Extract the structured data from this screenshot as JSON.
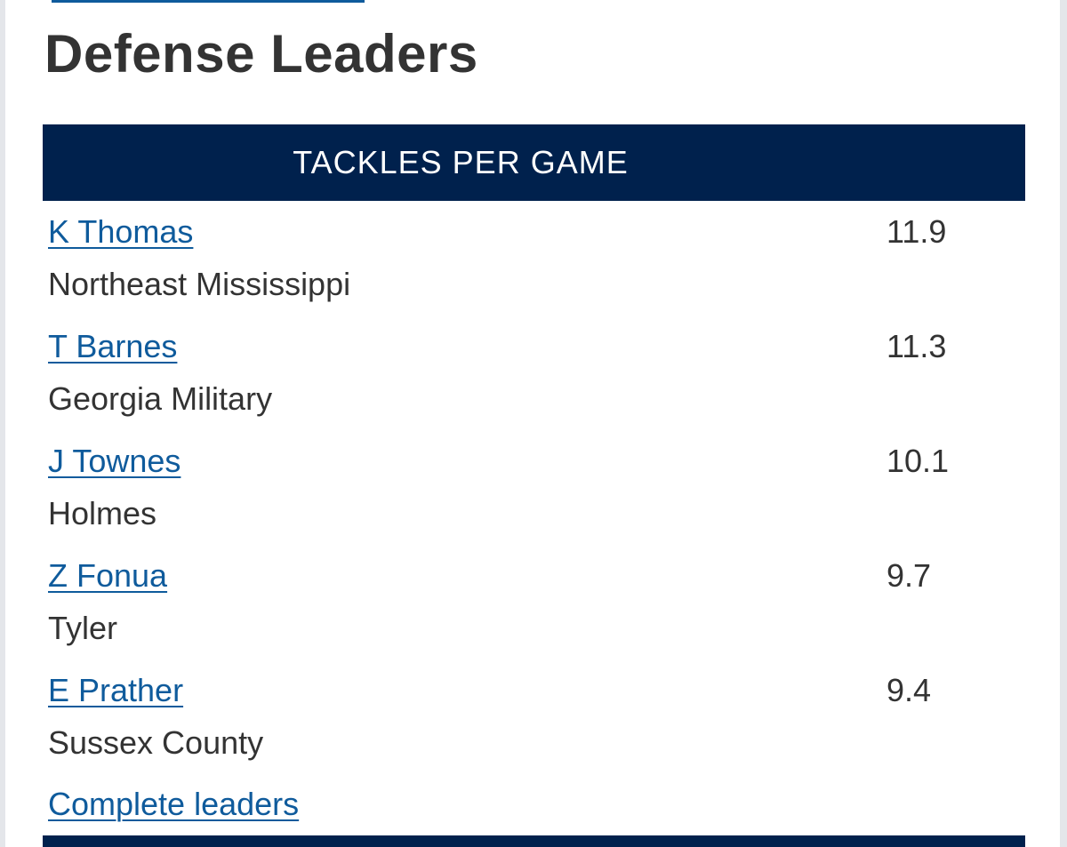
{
  "section_title": "Defense Leaders",
  "table": {
    "header": "TACKLES PER GAME",
    "rows": [
      {
        "name": "K Thomas",
        "team": "Northeast Mississippi",
        "value": "11.9"
      },
      {
        "name": "T Barnes",
        "team": "Georgia Military",
        "value": "11.3"
      },
      {
        "name": "J Townes",
        "team": "Holmes",
        "value": "10.1"
      },
      {
        "name": "Z Fonua",
        "team": "Tyler",
        "value": "9.7"
      },
      {
        "name": "E Prather",
        "team": "Sussex County",
        "value": "9.4"
      }
    ]
  },
  "complete_link": "Complete leaders",
  "colors": {
    "header_bg": "#00214d",
    "link": "#0f5b9c",
    "text": "#333333"
  }
}
